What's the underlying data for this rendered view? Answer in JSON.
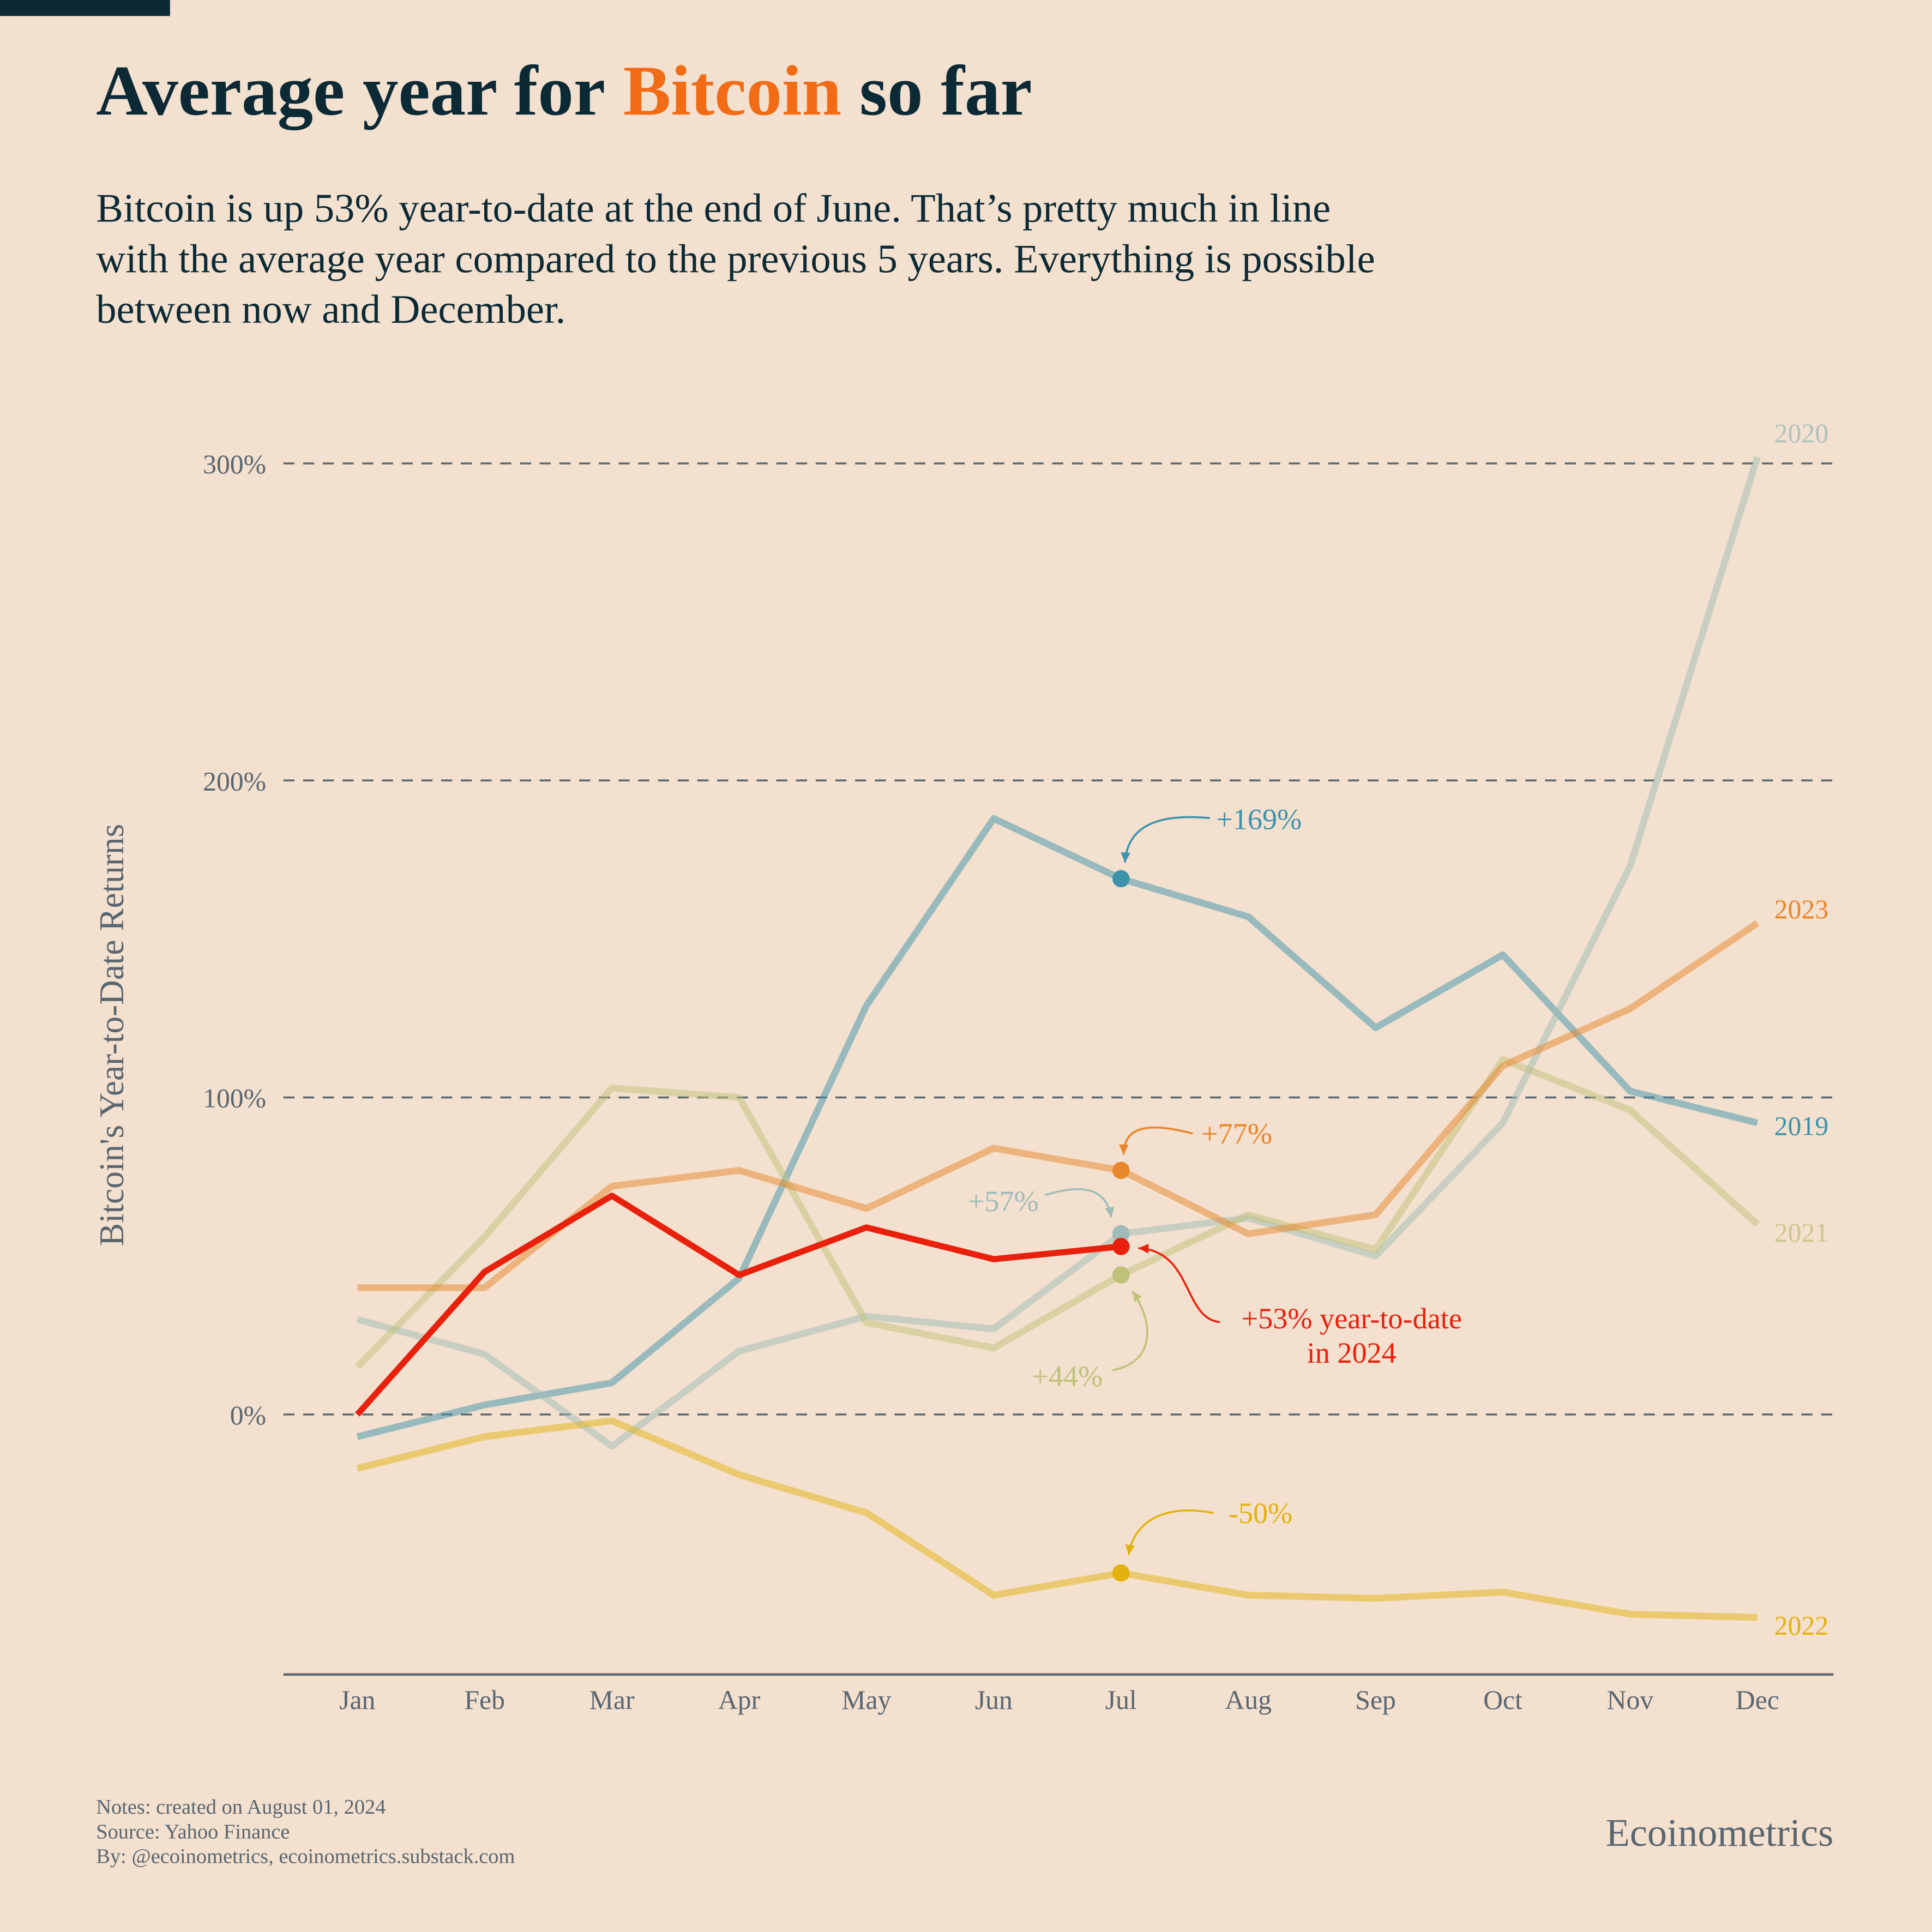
{
  "chart_data": {
    "type": "line",
    "title": [
      "Average year for",
      "Bitcoin",
      "so far"
    ],
    "subtitle": [
      "Bitcoin is up 53% year-to-date at the end of June. That’s pretty much in line",
      "with the average year compared to the previous 5 years. Everything is possible",
      "between now and December."
    ],
    "y_label": "Bitcoin's Year-to-Date Returns",
    "categories": [
      "Jan",
      "Feb",
      "Mar",
      "Apr",
      "May",
      "Jun",
      "Jul",
      "Aug",
      "Sep",
      "Oct",
      "Nov",
      "Dec"
    ],
    "ylim": [
      -82,
      315
    ],
    "yticks": [
      {
        "value": 0,
        "label": "0%"
      },
      {
        "value": 100,
        "label": "100%"
      },
      {
        "value": 200,
        "label": "200%"
      },
      {
        "value": 300,
        "label": "300%"
      }
    ],
    "grid": true,
    "series": [
      {
        "name": "2019",
        "color": "#3d93ab",
        "values": [
          -7,
          3,
          10,
          43,
          129,
          188,
          169,
          157,
          122,
          145,
          102,
          92
        ]
      },
      {
        "name": "2020",
        "color": "#9fbcb8",
        "values": [
          30,
          19,
          -10,
          20,
          31,
          27,
          57,
          62,
          50,
          92,
          173,
          302
        ]
      },
      {
        "name": "2021",
        "color": "#bfc27a",
        "values": [
          15,
          56,
          103,
          100,
          29,
          21,
          44,
          63,
          52,
          112,
          96,
          60
        ]
      },
      {
        "name": "2022",
        "color": "#e3b20f",
        "values": [
          -17,
          -7,
          -2,
          -19,
          -31,
          -57,
          -50,
          -57,
          -58,
          -56,
          -63,
          -64
        ]
      },
      {
        "name": "2023",
        "color": "#e8862a",
        "values": [
          40,
          40,
          72,
          77,
          65,
          84,
          77,
          57,
          63,
          110,
          128,
          155
        ]
      },
      {
        "name": "2024",
        "color": "#e8200c",
        "values": [
          0,
          45,
          69,
          44,
          59,
          49,
          53,
          null,
          null,
          null,
          null,
          null
        ]
      }
    ],
    "annotations": [
      {
        "series": 0,
        "index": 6,
        "text": [
          "+169%"
        ]
      },
      {
        "series": 4,
        "index": 6,
        "text": [
          "+77%"
        ]
      },
      {
        "series": 1,
        "index": 6,
        "text": [
          "+57%"
        ]
      },
      {
        "series": 2,
        "index": 6,
        "text": [
          "+44%"
        ]
      },
      {
        "series": 5,
        "index": 6,
        "text": [
          "+53% year-to-date",
          "in 2024"
        ]
      },
      {
        "series": 3,
        "index": 6,
        "text": [
          "-50%"
        ]
      }
    ],
    "notes": [
      "Notes: created on August 01, 2024",
      "Source: Yahoo Finance",
      "By: @ecoinometrics, ecoinometrics.substack.com"
    ],
    "brand": "Ecoinometrics"
  }
}
